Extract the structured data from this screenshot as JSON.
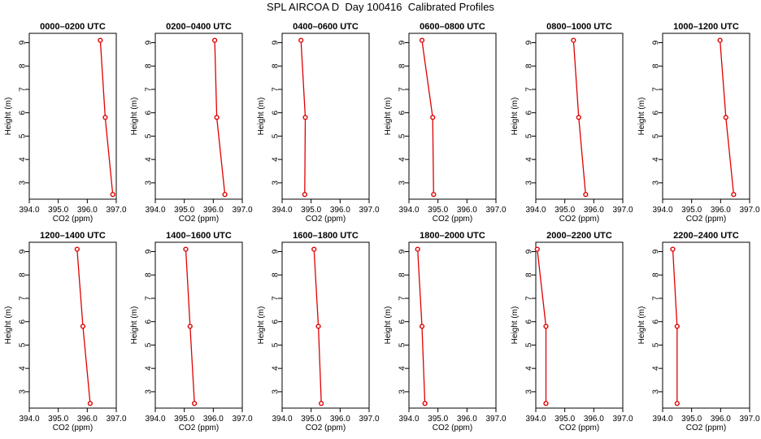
{
  "figure": {
    "title": "SPL AIRCOA D  Day 100416  Calibrated Profiles",
    "series_color": "#e00000"
  },
  "chart_data": [
    {
      "type": "line",
      "title": "0000–0200 UTC",
      "xlabel": "CO2 (ppm)",
      "ylabel": "Height (m)",
      "xlim": [
        394,
        397
      ],
      "ylim": [
        2.3,
        9.4
      ],
      "xticks": [
        "394.0",
        "395.0",
        "396.0",
        "397.0"
      ],
      "yticks": [
        "3",
        "4",
        "5",
        "6",
        "7",
        "8",
        "9"
      ],
      "x": [
        396.88,
        396.62,
        396.45
      ],
      "y": [
        2.5,
        5.8,
        9.1
      ]
    },
    {
      "type": "line",
      "title": "0200–0400 UTC",
      "xlabel": "CO2 (ppm)",
      "ylabel": "Height (m)",
      "xlim": [
        394,
        397
      ],
      "ylim": [
        2.3,
        9.4
      ],
      "xticks": [
        "394.0",
        "395.0",
        "396.0",
        "397.0"
      ],
      "yticks": [
        "3",
        "4",
        "5",
        "6",
        "7",
        "8",
        "9"
      ],
      "x": [
        396.4,
        396.12,
        396.05
      ],
      "y": [
        2.5,
        5.8,
        9.1
      ]
    },
    {
      "type": "line",
      "title": "0400–0600 UTC",
      "xlabel": "CO2 (ppm)",
      "ylabel": "Height (m)",
      "xlim": [
        394,
        397
      ],
      "ylim": [
        2.3,
        9.4
      ],
      "xticks": [
        "394.0",
        "395.0",
        "396.0",
        "397.0"
      ],
      "yticks": [
        "3",
        "4",
        "5",
        "6",
        "7",
        "8",
        "9"
      ],
      "x": [
        394.78,
        394.8,
        394.65
      ],
      "y": [
        2.5,
        5.8,
        9.1
      ]
    },
    {
      "type": "line",
      "title": "0600–0800 UTC",
      "xlabel": "CO2 (ppm)",
      "ylabel": "Height (m)",
      "xlim": [
        394,
        397
      ],
      "ylim": [
        2.3,
        9.4
      ],
      "xticks": [
        "394.0",
        "395.0",
        "396.0",
        "397.0"
      ],
      "yticks": [
        "3",
        "4",
        "5",
        "6",
        "7",
        "8",
        "9"
      ],
      "x": [
        394.85,
        394.82,
        394.45
      ],
      "y": [
        2.5,
        5.8,
        9.1
      ]
    },
    {
      "type": "line",
      "title": "0800–1000 UTC",
      "xlabel": "CO2 (ppm)",
      "ylabel": "Height (m)",
      "xlim": [
        394,
        397
      ],
      "ylim": [
        2.3,
        9.4
      ],
      "xticks": [
        "394.0",
        "395.0",
        "396.0",
        "397.0"
      ],
      "yticks": [
        "3",
        "4",
        "5",
        "6",
        "7",
        "8",
        "9"
      ],
      "x": [
        395.72,
        395.48,
        395.3
      ],
      "y": [
        2.5,
        5.8,
        9.1
      ]
    },
    {
      "type": "line",
      "title": "1000–1200 UTC",
      "xlabel": "CO2 (ppm)",
      "ylabel": "Height (m)",
      "xlim": [
        394,
        397
      ],
      "ylim": [
        2.3,
        9.4
      ],
      "xticks": [
        "394.0",
        "395.0",
        "396.0",
        "397.0"
      ],
      "yticks": [
        "3",
        "4",
        "5",
        "6",
        "7",
        "8",
        "9"
      ],
      "x": [
        396.45,
        396.18,
        395.98
      ],
      "y": [
        2.5,
        5.8,
        9.1
      ]
    },
    {
      "type": "line",
      "title": "1200–1400 UTC",
      "xlabel": "CO2 (ppm)",
      "ylabel": "Height (m)",
      "xlim": [
        394,
        397
      ],
      "ylim": [
        2.3,
        9.4
      ],
      "xticks": [
        "394.0",
        "395.0",
        "396.0",
        "397.0"
      ],
      "yticks": [
        "3",
        "4",
        "5",
        "6",
        "7",
        "8",
        "9"
      ],
      "x": [
        396.1,
        395.85,
        395.65
      ],
      "y": [
        2.5,
        5.8,
        9.1
      ]
    },
    {
      "type": "line",
      "title": "1400–1600 UTC",
      "xlabel": "CO2 (ppm)",
      "ylabel": "Height (m)",
      "xlim": [
        394,
        397
      ],
      "ylim": [
        2.3,
        9.4
      ],
      "xticks": [
        "394.0",
        "395.0",
        "396.0",
        "397.0"
      ],
      "yticks": [
        "3",
        "4",
        "5",
        "6",
        "7",
        "8",
        "9"
      ],
      "x": [
        395.35,
        395.2,
        395.05
      ],
      "y": [
        2.5,
        5.8,
        9.1
      ]
    },
    {
      "type": "line",
      "title": "1600–1800 UTC",
      "xlabel": "CO2 (ppm)",
      "ylabel": "Height (m)",
      "xlim": [
        394,
        397
      ],
      "ylim": [
        2.3,
        9.4
      ],
      "xticks": [
        "394.0",
        "395.0",
        "396.0",
        "397.0"
      ],
      "yticks": [
        "3",
        "4",
        "5",
        "6",
        "7",
        "8",
        "9"
      ],
      "x": [
        395.35,
        395.25,
        395.1
      ],
      "y": [
        2.5,
        5.8,
        9.1
      ]
    },
    {
      "type": "line",
      "title": "1800–2000 UTC",
      "xlabel": "CO2 (ppm)",
      "ylabel": "Height (m)",
      "xlim": [
        394,
        397
      ],
      "ylim": [
        2.3,
        9.4
      ],
      "xticks": [
        "394.0",
        "395.0",
        "396.0",
        "397.0"
      ],
      "yticks": [
        "3",
        "4",
        "5",
        "6",
        "7",
        "8",
        "9"
      ],
      "x": [
        394.55,
        394.45,
        394.3
      ],
      "y": [
        2.5,
        5.8,
        9.1
      ]
    },
    {
      "type": "line",
      "title": "2000–2200 UTC",
      "xlabel": "CO2 (ppm)",
      "ylabel": "Height (m)",
      "xlim": [
        394,
        397
      ],
      "ylim": [
        2.3,
        9.4
      ],
      "xticks": [
        "394.0",
        "395.0",
        "396.0",
        "397.0"
      ],
      "yticks": [
        "3",
        "4",
        "5",
        "6",
        "7",
        "8",
        "9"
      ],
      "x": [
        394.35,
        394.35,
        394.05
      ],
      "y": [
        2.5,
        5.8,
        9.1
      ]
    },
    {
      "type": "line",
      "title": "2200–2400 UTC",
      "xlabel": "CO2 (ppm)",
      "ylabel": "Height (m)",
      "xlim": [
        394,
        397
      ],
      "ylim": [
        2.3,
        9.4
      ],
      "xticks": [
        "394.0",
        "395.0",
        "396.0",
        "397.0"
      ],
      "yticks": [
        "3",
        "4",
        "5",
        "6",
        "7",
        "8",
        "9"
      ],
      "x": [
        394.5,
        394.5,
        394.35
      ],
      "y": [
        2.5,
        5.8,
        9.1
      ]
    }
  ]
}
